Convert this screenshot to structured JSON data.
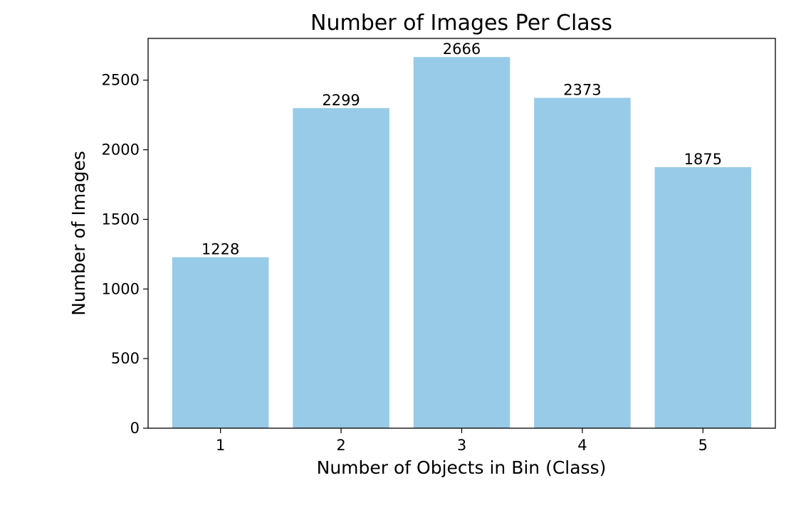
{
  "chart_data": {
    "type": "bar",
    "title": "Number of Images Per Class",
    "xlabel": "Number of Objects in Bin (Class)",
    "ylabel": "Number of Images",
    "categories": [
      "1",
      "2",
      "3",
      "4",
      "5"
    ],
    "values": [
      1228,
      2299,
      2666,
      2373,
      1875
    ],
    "data_labels": [
      "1228",
      "2299",
      "2666",
      "2373",
      "1875"
    ],
    "ylim": [
      0,
      2800
    ],
    "yticks": [
      0,
      500,
      1000,
      1500,
      2000,
      2500
    ],
    "grid": false,
    "legend": "none",
    "bar_color": "#97cbe8"
  }
}
